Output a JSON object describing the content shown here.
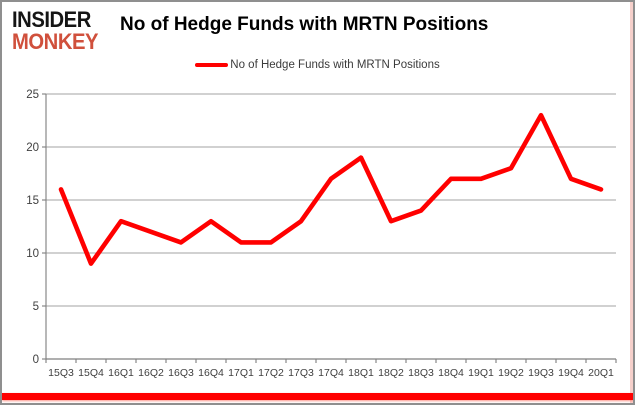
{
  "logo": {
    "line1": "INSIDER",
    "line2": "MONKEY",
    "color_line1": "#151515",
    "color_line2": "#d0503c"
  },
  "header": {
    "title": "No of Hedge Funds with MRTN Positions"
  },
  "legend": {
    "label": "No of Hedge Funds with MRTN Positions",
    "swatch_color": "#ff0000",
    "position": "top-center"
  },
  "chart_data": {
    "type": "line",
    "title": "No of Hedge Funds with MRTN Positions",
    "categories": [
      "15Q3",
      "15Q4",
      "16Q1",
      "16Q2",
      "16Q3",
      "16Q4",
      "17Q1",
      "17Q2",
      "17Q3",
      "17Q4",
      "18Q1",
      "18Q2",
      "18Q3",
      "18Q4",
      "19Q1",
      "19Q2",
      "19Q3",
      "19Q4",
      "20Q1"
    ],
    "series": [
      {
        "name": "No of Hedge Funds with MRTN Positions",
        "color": "#ff0000",
        "values": [
          16,
          9,
          13,
          12,
          11,
          13,
          11,
          11,
          13,
          17,
          19,
          13,
          14,
          17,
          17,
          18,
          23,
          17,
          16
        ]
      }
    ],
    "xlabel": "",
    "ylabel": "",
    "ylim": [
      0,
      25
    ],
    "ytick_step": 5,
    "grid": true,
    "legend_position": "top-center"
  },
  "colors": {
    "gridline": "#a3a3a3",
    "axis": "#7f7f7f",
    "tick_label": "#3f3f3f",
    "bottom_bar": "#ff0000",
    "card_border": "#8f8f8f"
  }
}
